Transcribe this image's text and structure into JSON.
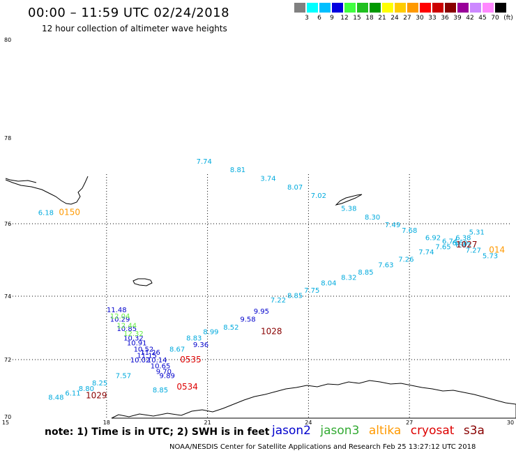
{
  "header": {
    "title": "00:00 – 11:59 UTC 02/24/2018",
    "subtitle": "12 hour collection of altimeter wave heights"
  },
  "colorbar": {
    "colors": [
      "#808080",
      "#00ffff",
      "#00bfff",
      "#0000e0",
      "#40ff40",
      "#20c020",
      "#009900",
      "#ffff00",
      "#ffcc00",
      "#ff9900",
      "#ff0000",
      "#cc0000",
      "#880000",
      "#990099",
      "#cc88ff",
      "#ff88ff",
      "#000000"
    ],
    "labels": [
      "3",
      "6",
      "9",
      "12",
      "15",
      "18",
      "21",
      "24",
      "27",
      "30",
      "33",
      "36",
      "39",
      "42",
      "45",
      "70"
    ],
    "unit": "(ft)"
  },
  "axes": {
    "lat_labels": [
      "80",
      "78",
      "76",
      "74",
      "72",
      "70"
    ],
    "lon_labels": [
      "15",
      "18",
      "21",
      "24",
      "27",
      "30"
    ]
  },
  "colors": {
    "jason2": "#0000cc",
    "jason3": "#66ee44",
    "altika": "#ff9900",
    "cryosat": "#dd0000",
    "s3a": "#880000",
    "other": "#00aadd"
  },
  "chart_data": {
    "type": "scatter",
    "title": "00:00 – 11:59 UTC 02/24/2018",
    "subtitle": "12 hour collection of altimeter wave heights",
    "xlabel": "",
    "ylabel": "",
    "xlim": [
      15,
      30
    ],
    "ylim": [
      70,
      80
    ],
    "series": [
      {
        "name": "cyan",
        "color": "#00aadd",
        "points": [
          {
            "lon": 16.2,
            "lat": 76.2,
            "v": "6.18"
          },
          {
            "lon": 20.9,
            "lat": 77.4,
            "v": "7.74"
          },
          {
            "lon": 21.9,
            "lat": 77.2,
            "v": "8.81"
          },
          {
            "lon": 22.8,
            "lat": 77.0,
            "v": "3.74"
          },
          {
            "lon": 23.6,
            "lat": 76.8,
            "v": "8.07"
          },
          {
            "lon": 24.3,
            "lat": 76.6,
            "v": "7.02"
          },
          {
            "lon": 25.2,
            "lat": 76.3,
            "v": "5.38"
          },
          {
            "lon": 25.9,
            "lat": 76.1,
            "v": "8.30"
          },
          {
            "lon": 26.5,
            "lat": 75.9,
            "v": "7.49"
          },
          {
            "lon": 27.0,
            "lat": 75.75,
            "v": "7.68"
          },
          {
            "lon": 27.7,
            "lat": 75.55,
            "v": "6.92"
          },
          {
            "lon": 28.2,
            "lat": 75.45,
            "v": "6.74"
          },
          {
            "lon": 28.5,
            "lat": 75.4,
            "v": "6.60"
          },
          {
            "lon": 28.6,
            "lat": 75.55,
            "v": "6.38"
          },
          {
            "lon": 29.0,
            "lat": 75.7,
            "v": "5.31"
          },
          {
            "lon": 28.6,
            "lat": 75.35,
            "v": "6.43"
          },
          {
            "lon": 28.0,
            "lat": 75.3,
            "v": "7.65"
          },
          {
            "lon": 28.9,
            "lat": 75.2,
            "v": "7.27"
          },
          {
            "lon": 29.4,
            "lat": 75.05,
            "v": "5.73"
          },
          {
            "lon": 27.5,
            "lat": 75.15,
            "v": "7.74"
          },
          {
            "lon": 26.9,
            "lat": 74.95,
            "v": "7.26"
          },
          {
            "lon": 26.3,
            "lat": 74.8,
            "v": "7.63"
          },
          {
            "lon": 25.7,
            "lat": 74.6,
            "v": "8.85"
          },
          {
            "lon": 25.2,
            "lat": 74.45,
            "v": "8.32"
          },
          {
            "lon": 24.6,
            "lat": 74.3,
            "v": "8.04"
          },
          {
            "lon": 24.1,
            "lat": 74.1,
            "v": "7.75"
          },
          {
            "lon": 23.6,
            "lat": 73.95,
            "v": "8.85"
          },
          {
            "lon": 23.1,
            "lat": 73.8,
            "v": "7.22"
          },
          {
            "lon": 20.6,
            "lat": 72.6,
            "v": "8.83"
          },
          {
            "lon": 21.1,
            "lat": 72.8,
            "v": "8.99"
          },
          {
            "lon": 21.7,
            "lat": 72.95,
            "v": "8.52"
          },
          {
            "lon": 20.1,
            "lat": 72.25,
            "v": "8.67"
          },
          {
            "lon": 18.5,
            "lat": 71.35,
            "v": "7.57"
          },
          {
            "lon": 17.8,
            "lat": 71.1,
            "v": "8.25"
          },
          {
            "lon": 17.4,
            "lat": 70.9,
            "v": "8.80"
          },
          {
            "lon": 17.0,
            "lat": 70.75,
            "v": "6.11"
          },
          {
            "lon": 16.5,
            "lat": 70.6,
            "v": "8.48"
          },
          {
            "lon": 19.6,
            "lat": 70.85,
            "v": "8.85"
          }
        ]
      },
      {
        "name": "jason2",
        "color": "#0000cc",
        "points": [
          {
            "lon": 18.3,
            "lat": 73.5,
            "v": "11.48"
          },
          {
            "lon": 18.4,
            "lat": 73.2,
            "v": "10.29"
          },
          {
            "lon": 18.6,
            "lat": 72.9,
            "v": "10.85"
          },
          {
            "lon": 18.8,
            "lat": 72.6,
            "v": "10.32"
          },
          {
            "lon": 18.9,
            "lat": 72.45,
            "v": "10.91"
          },
          {
            "lon": 19.1,
            "lat": 72.25,
            "v": "10.52"
          },
          {
            "lon": 19.3,
            "lat": 72.15,
            "v": "11.26"
          },
          {
            "lon": 19.2,
            "lat": 72.05,
            "v": "11.15"
          },
          {
            "lon": 19.0,
            "lat": 71.9,
            "v": "10.02"
          },
          {
            "lon": 19.5,
            "lat": 71.9,
            "v": "10.14"
          },
          {
            "lon": 19.6,
            "lat": 71.7,
            "v": "10.65"
          },
          {
            "lon": 19.7,
            "lat": 71.5,
            "v": "9.70"
          },
          {
            "lon": 19.8,
            "lat": 71.35,
            "v": "9.89"
          },
          {
            "lon": 20.8,
            "lat": 72.4,
            "v": "9.36"
          },
          {
            "lon": 22.2,
            "lat": 73.2,
            "v": "9.58"
          },
          {
            "lon": 22.6,
            "lat": 73.45,
            "v": "9.95"
          }
        ]
      },
      {
        "name": "jason3",
        "color": "#66ee44",
        "points": [
          {
            "lon": 18.4,
            "lat": 73.3,
            "v": "12.04"
          },
          {
            "lon": 18.6,
            "lat": 73.0,
            "v": "12.44"
          },
          {
            "lon": 18.8,
            "lat": 72.75,
            "v": "12.32"
          }
        ]
      },
      {
        "name": "altika",
        "color": "#ff9900",
        "points": [
          {
            "lon": 16.9,
            "lat": 76.2,
            "v": "0150"
          },
          {
            "lon": 29.6,
            "lat": 75.2,
            "v": "014"
          }
        ]
      },
      {
        "name": "cryosat",
        "color": "#dd0000",
        "points": [
          {
            "lon": 20.5,
            "lat": 71.9,
            "v": "0535"
          },
          {
            "lon": 20.4,
            "lat": 70.95,
            "v": "0534"
          }
        ]
      },
      {
        "name": "s3a",
        "color": "#880000",
        "points": [
          {
            "lon": 28.7,
            "lat": 75.35,
            "v": "1027"
          },
          {
            "lon": 22.9,
            "lat": 72.8,
            "v": "1028"
          },
          {
            "lon": 17.7,
            "lat": 70.65,
            "v": "1029"
          }
        ]
      }
    ]
  },
  "legend": {
    "note": "note: 1) Time is in UTC; 2) SWH is in feet",
    "jason2": "jason2",
    "jason3": "jason3",
    "altika": "altika",
    "cryosat": "cryosat",
    "s3a": "s3a"
  },
  "footer": {
    "text": "NOAA/NESDIS Center for Satellite Applications and Research    Feb 25 13:27:12 UTC 2018"
  }
}
